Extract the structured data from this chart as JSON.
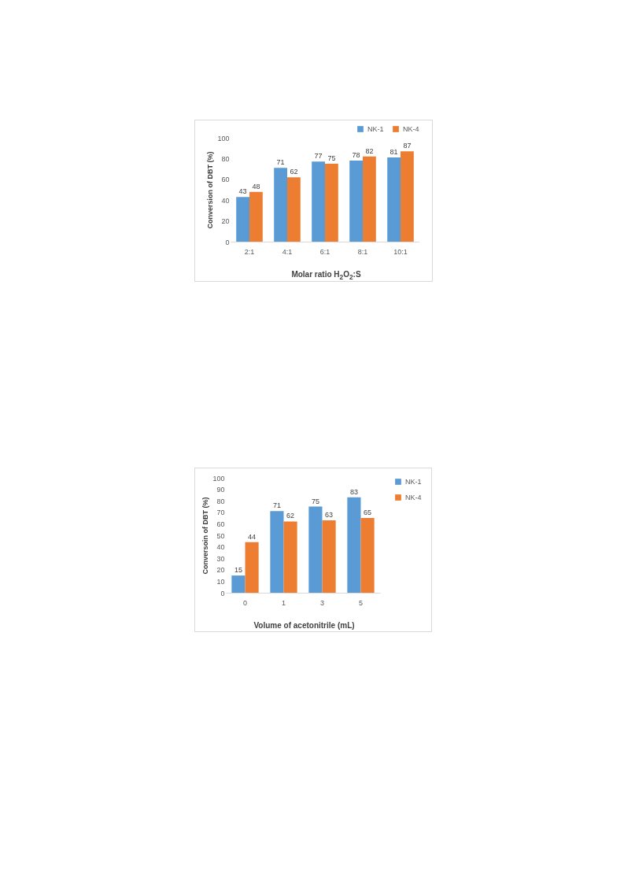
{
  "chart_data": [
    {
      "type": "bar",
      "categories": [
        "2:1",
        "4:1",
        "6:1",
        "8:1",
        "10:1"
      ],
      "xlabel": "Molar ratio H$_{2}$O$_{2}$:S",
      "ylabel": "Conversion of DBT (%)",
      "ylim": [
        0,
        100
      ],
      "yticks": [
        0,
        20,
        40,
        60,
        80,
        100
      ],
      "legend": "top right",
      "data_labels": true,
      "series": [
        {
          "name": "NK-1",
          "color": "#5b9bd5",
          "values": [
            43,
            71,
            77,
            78,
            81
          ]
        },
        {
          "name": "NK-4",
          "color": "#ed7d31",
          "values": [
            48,
            62,
            75,
            82,
            87
          ]
        }
      ]
    },
    {
      "type": "bar",
      "categories": [
        "0",
        "1",
        "3",
        "5"
      ],
      "xlabel": "Volume of acetonitrile (mL)",
      "ylabel": "Conversoin of DBT (%)",
      "ylim": [
        0,
        100
      ],
      "yticks": [
        0,
        10,
        20,
        30,
        40,
        50,
        60,
        70,
        80,
        90,
        100
      ],
      "legend": "right",
      "data_labels": true,
      "series": [
        {
          "name": "NK-1",
          "color": "#5b9bd5",
          "values": [
            15,
            71,
            75,
            83
          ]
        },
        {
          "name": "NK-4",
          "color": "#ed7d31",
          "values": [
            44,
            62,
            63,
            65
          ]
        }
      ]
    }
  ]
}
